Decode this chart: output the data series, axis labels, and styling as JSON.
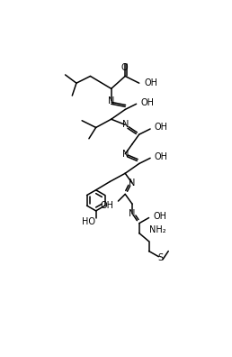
{
  "bg": "#ffffff",
  "figsize": [
    2.58,
    3.96
  ],
  "dpi": 100,
  "lw": 1.1,
  "fs": 7.0
}
